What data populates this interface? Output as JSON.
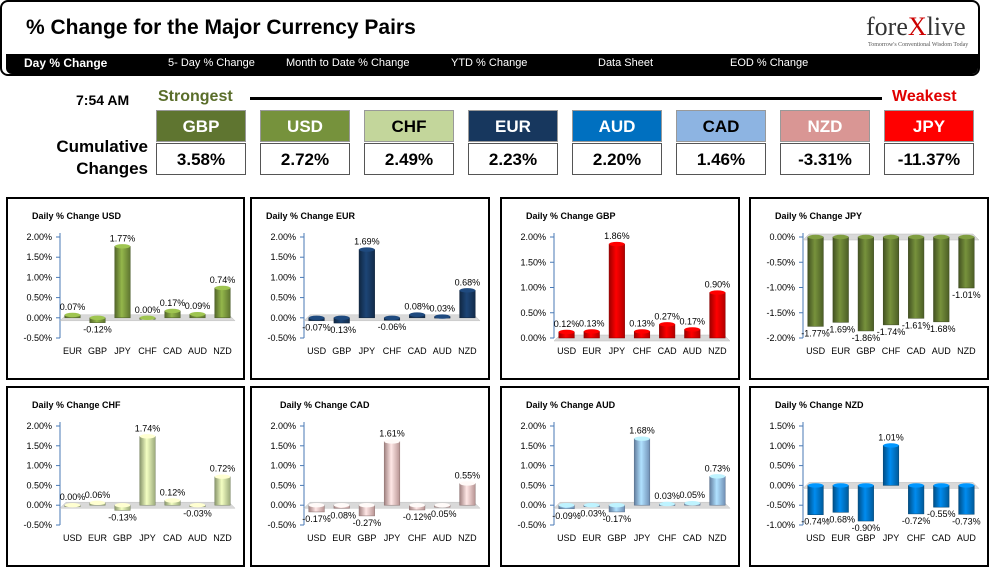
{
  "header": {
    "title": "% Change for the Major Currency Pairs",
    "logo_a": "fore",
    "logo_x": "X",
    "logo_b": "live",
    "logo_tagline": "Tomorrow's Conventional Wisdom Today"
  },
  "nav": {
    "tabs": [
      {
        "label": "Day % Change"
      },
      {
        "label": "5- Day % Change"
      },
      {
        "label": "Month to Date % Change"
      },
      {
        "label": "YTD % Change"
      },
      {
        "label": "Data Sheet"
      },
      {
        "label": "EOD % Change"
      }
    ]
  },
  "summary": {
    "time": "7:54 AM",
    "strongest": "Strongest",
    "weakest": "Weakest",
    "cumulative_label": "Cumulative Changes",
    "currencies": [
      {
        "code": "GBP",
        "value": "3.58%",
        "bg": "#5f7530",
        "fg": "#ffffff"
      },
      {
        "code": "USD",
        "value": "2.72%",
        "bg": "#76923c",
        "fg": "#ffffff"
      },
      {
        "code": "CHF",
        "value": "2.49%",
        "bg": "#c3d69b",
        "fg": "#000000"
      },
      {
        "code": "EUR",
        "value": "2.23%",
        "bg": "#17375e",
        "fg": "#ffffff"
      },
      {
        "code": "AUD",
        "value": "2.20%",
        "bg": "#0070c0",
        "fg": "#ffffff"
      },
      {
        "code": "CAD",
        "value": "1.46%",
        "bg": "#8db4e2",
        "fg": "#000000"
      },
      {
        "code": "NZD",
        "value": "-3.31%",
        "bg": "#d99694",
        "fg": "#ffffff"
      },
      {
        "code": "JPY",
        "value": "-11.37%",
        "bg": "#ff0000",
        "fg": "#ffffff"
      }
    ]
  },
  "chart_data": [
    {
      "type": "bar",
      "title": "Daily % Change USD",
      "categories": [
        "EUR",
        "GBP",
        "JPY",
        "CHF",
        "CAD",
        "AUD",
        "NZD"
      ],
      "values": [
        0.07,
        -0.12,
        1.77,
        0.0,
        0.17,
        0.09,
        0.74
      ],
      "labels": [
        "0.07%",
        "-0.12%",
        "1.77%",
        "0.00%",
        "0.17%",
        "0.09%",
        "0.74%"
      ],
      "ticks": [
        "2.00%",
        "1.50%",
        "1.00%",
        "0.50%",
        "0.00%",
        "-0.50%"
      ],
      "ylim": [
        -0.5,
        2.0
      ],
      "color": "#76923c"
    },
    {
      "type": "bar",
      "title": "Daily % Change EUR",
      "categories": [
        "USD",
        "GBP",
        "JPY",
        "CHF",
        "CAD",
        "AUD",
        "NZD"
      ],
      "values": [
        -0.07,
        -0.13,
        1.69,
        -0.06,
        0.08,
        0.03,
        0.68
      ],
      "labels": [
        "-0.07%",
        "-0.13%",
        "1.69%",
        "-0.06%",
        "0.08%",
        "0.03%",
        "0.68%"
      ],
      "ticks": [
        "2.00%",
        "1.50%",
        "1.00%",
        "0.50%",
        "0.00%",
        "-0.50%"
      ],
      "ylim": [
        -0.5,
        2.0
      ],
      "color": "#17375e"
    },
    {
      "type": "bar",
      "title": "Daily % Change GBP",
      "categories": [
        "USD",
        "EUR",
        "JPY",
        "CHF",
        "CAD",
        "AUD",
        "NZD"
      ],
      "values": [
        0.12,
        0.13,
        1.86,
        0.13,
        0.27,
        0.17,
        0.9
      ],
      "labels": [
        "0.12%",
        "0.13%",
        "1.86%",
        "0.13%",
        "0.27%",
        "0.17%",
        "0.90%"
      ],
      "ticks": [
        "2.00%",
        "1.50%",
        "1.00%",
        "0.50%",
        "0.00%"
      ],
      "ylim": [
        0.0,
        2.0
      ],
      "color": "#e00000"
    },
    {
      "type": "bar",
      "title": "Daily % Change JPY",
      "categories": [
        "USD",
        "EUR",
        "GBP",
        "CHF",
        "CAD",
        "AUD",
        "NZD"
      ],
      "values": [
        -1.77,
        -1.69,
        -1.86,
        -1.74,
        -1.61,
        -1.68,
        -1.01
      ],
      "labels": [
        "-1.77%",
        "-1.69%",
        "-1.86%",
        "-1.74%",
        "-1.61%",
        "-1.68%",
        "-1.01%"
      ],
      "ticks": [
        "0.00%",
        "-0.50%",
        "-1.00%",
        "-1.50%",
        "-2.00%"
      ],
      "ylim": [
        -2.0,
        0.0
      ],
      "color": "#5f7530"
    },
    {
      "type": "bar",
      "title": "Daily % Change CHF",
      "categories": [
        "USD",
        "EUR",
        "GBP",
        "JPY",
        "CAD",
        "AUD",
        "NZD"
      ],
      "values": [
        0.0,
        0.06,
        -0.13,
        1.74,
        0.12,
        -0.03,
        0.72
      ],
      "labels": [
        "0.00%",
        "0.06%",
        "-0.13%",
        "1.74%",
        "0.12%",
        "-0.03%",
        "0.72%"
      ],
      "ticks": [
        "2.00%",
        "1.50%",
        "1.00%",
        "0.50%",
        "0.00%",
        "-0.50%"
      ],
      "ylim": [
        -0.5,
        2.0
      ],
      "color": "#c3d69b"
    },
    {
      "type": "bar",
      "title": "Daily % Change CAD",
      "categories": [
        "USD",
        "EUR",
        "GBP",
        "JPY",
        "CHF",
        "AUD",
        "NZD"
      ],
      "values": [
        -0.17,
        -0.08,
        -0.27,
        1.61,
        -0.12,
        -0.05,
        0.55
      ],
      "labels": [
        "-0.17%",
        "-0.08%",
        "-0.27%",
        "1.61%",
        "-0.12%",
        "-0.05%",
        "0.55%"
      ],
      "ticks": [
        "2.00%",
        "1.50%",
        "1.00%",
        "0.50%",
        "0.00%",
        "-0.50%"
      ],
      "ylim": [
        -0.5,
        2.0
      ],
      "color": "#e6b9b8"
    },
    {
      "type": "bar",
      "title": "Daily % Change AUD",
      "categories": [
        "USD",
        "EUR",
        "GBP",
        "JPY",
        "CHF",
        "CAD",
        "NZD"
      ],
      "values": [
        -0.09,
        -0.03,
        -0.17,
        1.68,
        0.03,
        0.05,
        0.73
      ],
      "labels": [
        "-0.09%",
        "-0.03%",
        "-0.17%",
        "1.68%",
        "0.03%",
        "0.05%",
        "0.73%"
      ],
      "ticks": [
        "2.00%",
        "1.50%",
        "1.00%",
        "0.50%",
        "0.00%",
        "-0.50%"
      ],
      "ylim": [
        -0.5,
        2.0
      ],
      "color": "#8db4e2"
    },
    {
      "type": "bar",
      "title": "Daily % Change NZD",
      "categories": [
        "USD",
        "EUR",
        "GBP",
        "JPY",
        "CHF",
        "CAD",
        "AUD"
      ],
      "values": [
        -0.74,
        -0.68,
        -0.9,
        1.01,
        -0.72,
        -0.55,
        -0.73
      ],
      "labels": [
        "-0.74%",
        "-0.68%",
        "-0.90%",
        "1.01%",
        "-0.72%",
        "-0.55%",
        "-0.73%"
      ],
      "ticks": [
        "1.50%",
        "1.00%",
        "0.50%",
        "0.00%",
        "-0.50%",
        "-1.00%"
      ],
      "ylim": [
        -1.0,
        1.5
      ],
      "color": "#0070c0"
    }
  ]
}
